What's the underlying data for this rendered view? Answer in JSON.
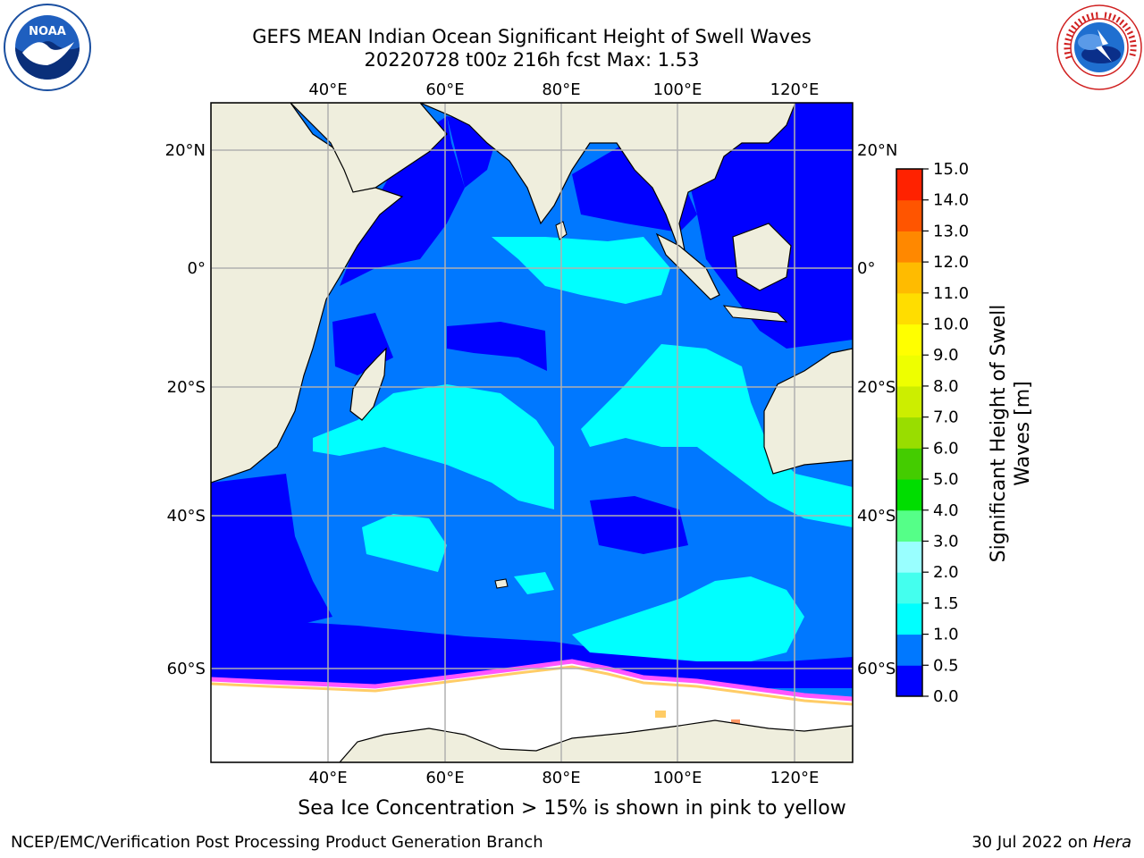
{
  "header": {
    "title_line1": "GEFS MEAN Indian Ocean Significant Height of Swell Waves",
    "title_line2": "20220728 t00z 216h fcst   Max: 1.53"
  },
  "logos": {
    "left": {
      "icon": "noaa-logo",
      "text": "NOAA"
    },
    "right": {
      "icon": "national-weather-service-logo",
      "ring_text": "NATIONAL WEATHER SERVICE"
    }
  },
  "map": {
    "lon_labels": [
      "40°E",
      "60°E",
      "80°E",
      "100°E",
      "120°E"
    ],
    "lat_labels": [
      "20°N",
      "0°",
      "20°S",
      "40°S",
      "60°S"
    ],
    "colors": {
      "land": "#efeedd",
      "ice": "#ffffff",
      "grid": "#b0b0b0",
      "ice_edge": [
        "#ff55ff",
        "#ff99cc",
        "#ffcc66"
      ]
    }
  },
  "colorbar": {
    "label_line1": "Significant Height of Swell",
    "label_line2": "Waves [m]",
    "ticks": [
      "0.0",
      "0.5",
      "1.0",
      "1.5",
      "2.0",
      "3.0",
      "4.0",
      "5.0",
      "6.0",
      "7.0",
      "8.0",
      "9.0",
      "10.0",
      "11.0",
      "12.0",
      "13.0",
      "14.0",
      "15.0"
    ],
    "colors": [
      "#0000ff",
      "#0078ff",
      "#00ffff",
      "#44ffee",
      "#99ffff",
      "#55ff88",
      "#00dd00",
      "#44cc00",
      "#99dd00",
      "#ccee00",
      "#eeff00",
      "#ffff00",
      "#ffdd00",
      "#ffbb00",
      "#ff8800",
      "#ff5500",
      "#ff2200"
    ]
  },
  "note": "Sea Ice Concentration > 15% is shown in pink to yellow",
  "footer": {
    "left": "NCEP/EMC/Verification Post Processing Product Generation Branch",
    "right_date": "30 Jul 2022 on ",
    "right_host": "Hera"
  }
}
